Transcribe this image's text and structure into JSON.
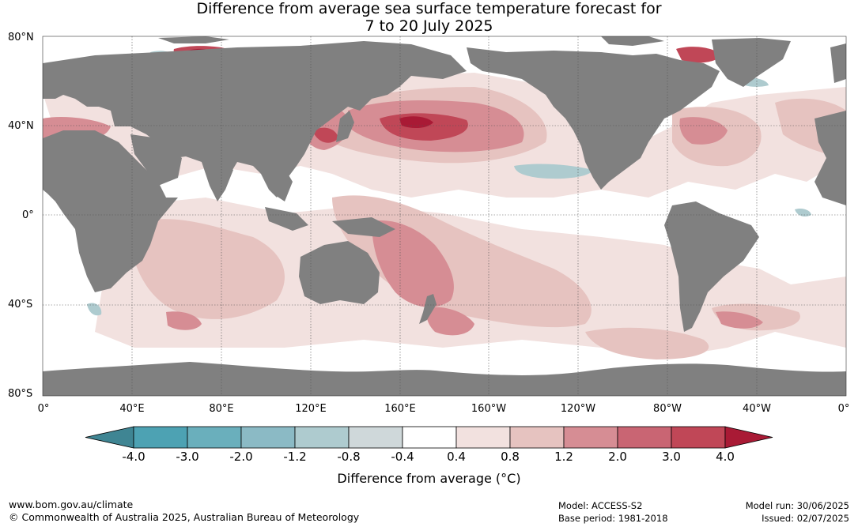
{
  "title": {
    "line1": "Difference from average sea surface temperature forecast for",
    "line2": "7 to 20 July 2025"
  },
  "map": {
    "lat_labels": [
      "80°N",
      "40°N",
      "0°",
      "40°S",
      "80°S"
    ],
    "lon_labels": [
      "0°",
      "40°E",
      "80°E",
      "120°E",
      "160°E",
      "160°W",
      "120°W",
      "80°W",
      "40°W",
      "0°"
    ],
    "land_color": "#808080",
    "ocean_neutral_color": "#ffffff"
  },
  "colorbar": {
    "boundaries": [
      "-4.0",
      "-3.0",
      "-2.0",
      "-1.2",
      "-0.8",
      "-0.4",
      "0.4",
      "0.8",
      "1.2",
      "2.0",
      "3.0",
      "4.0"
    ],
    "colors": [
      "#3f8593",
      "#4da2b3",
      "#6aafbc",
      "#8bbac5",
      "#aecbcf",
      "#cfd8da",
      "#ffffff",
      "#f2e1df",
      "#e6c3c0",
      "#d68d94",
      "#c96573",
      "#c04757",
      "#a91a35"
    ],
    "title": "Difference from average (°C)"
  },
  "footer": {
    "url": "www.bom.gov.au/climate",
    "copyright": "© Commonwealth of Australia 2025, Australian Bureau of Meteorology",
    "model": "Model: ACCESS-S2",
    "base_period": "Base period: 1981-2018",
    "model_run": "Model run: 30/06/2025",
    "issued": "Issued: 02/07/2025"
  }
}
